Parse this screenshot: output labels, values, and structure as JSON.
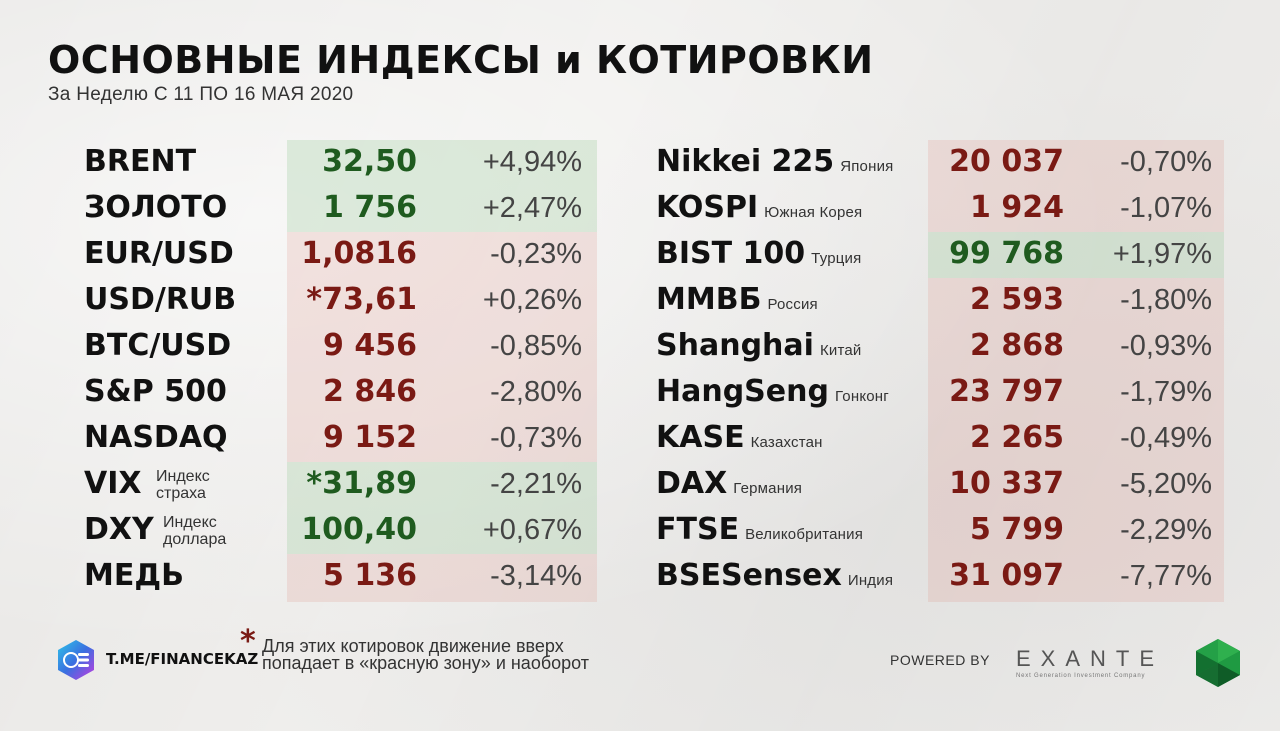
{
  "header": {
    "title": "ОСНОВНЫЕ ИНДЕКСЫ и КОТИРОВКИ",
    "subtitle": "За Неделю С 11 ПО 16 МАЯ 2020"
  },
  "left_table": {
    "rows": [
      {
        "name": "BRENT",
        "value": "32,50",
        "change": "+4,94%",
        "trend": "up"
      },
      {
        "name": "ЗОЛОТО",
        "value": "1 756",
        "change": "+2,47%",
        "trend": "up"
      },
      {
        "name": "EUR/USD",
        "value": "1,0816",
        "change": "-0,23%",
        "trend": "down"
      },
      {
        "name": "USD/RUB",
        "value": "*73,61",
        "change": "+0,26%",
        "trend": "down"
      },
      {
        "name": "BTC/USD",
        "value": "9 456",
        "change": "-0,85%",
        "trend": "down"
      },
      {
        "name": "S&P 500",
        "value": "2 846",
        "change": "-2,80%",
        "trend": "down"
      },
      {
        "name": "NASDAQ",
        "value": "9 152",
        "change": "-0,73%",
        "trend": "down"
      },
      {
        "name": "VIX",
        "sub1": "Индекс",
        "sub2": "страха",
        "value": "*31,89",
        "change": "-2,21%",
        "trend": "up"
      },
      {
        "name": "DXY",
        "sub1": "Индекс",
        "sub2": "доллара",
        "value": "100,40",
        "change": "+0,67%",
        "trend": "up"
      },
      {
        "name": "МЕДЬ",
        "value": "5 136",
        "change": "-3,14%",
        "trend": "down"
      }
    ]
  },
  "right_table": {
    "rows": [
      {
        "name": "Nikkei 225",
        "sub": "Япония",
        "value": "20 037",
        "change": "-0,70%",
        "trend": "down"
      },
      {
        "name": "KOSPI",
        "sub": "Южная Корея",
        "value": "1 924",
        "change": "-1,07%",
        "trend": "down"
      },
      {
        "name": "BIST 100",
        "sub": "Турция",
        "value": "99 768",
        "change": "+1,97%",
        "trend": "up"
      },
      {
        "name": "ММВБ",
        "sub": "Россия",
        "value": "2 593",
        "change": "-1,80%",
        "trend": "down"
      },
      {
        "name": "Shanghai",
        "sub": "Китай",
        "value": "2 868",
        "change": "-0,93%",
        "trend": "down"
      },
      {
        "name": "HangSeng",
        "sub": "Гонконг",
        "value": "23 797",
        "change": "-1,79%",
        "trend": "down"
      },
      {
        "name": "KASE",
        "sub": "Казахстан",
        "value": "2 265",
        "change": "-0,49%",
        "trend": "down"
      },
      {
        "name": "DAX",
        "sub": "Германия",
        "value": "10 337",
        "change": "-5,20%",
        "trend": "down"
      },
      {
        "name": "FTSE",
        "sub": "Великобритания",
        "value": "5 799",
        "change": "-2,29%",
        "trend": "down"
      },
      {
        "name": "BSESensex",
        "sub": "Индия",
        "value": "31 097",
        "change": "-7,77%",
        "trend": "down"
      }
    ]
  },
  "footer": {
    "channel": "T.ME/FINANCEKAZ",
    "asterisk": "*",
    "note": "Для этих котировок движение вверх попадает в «красную зону» и наоборот",
    "powered_by": "POWERED BY",
    "brand": "EXANTE",
    "brand_tagline": "Next Generation Investment Company"
  },
  "colors": {
    "up_text": "#1f5b1f",
    "down_text": "#7a1a14",
    "green_band": "#c8e1c8",
    "red_band": "#eecfcb"
  }
}
